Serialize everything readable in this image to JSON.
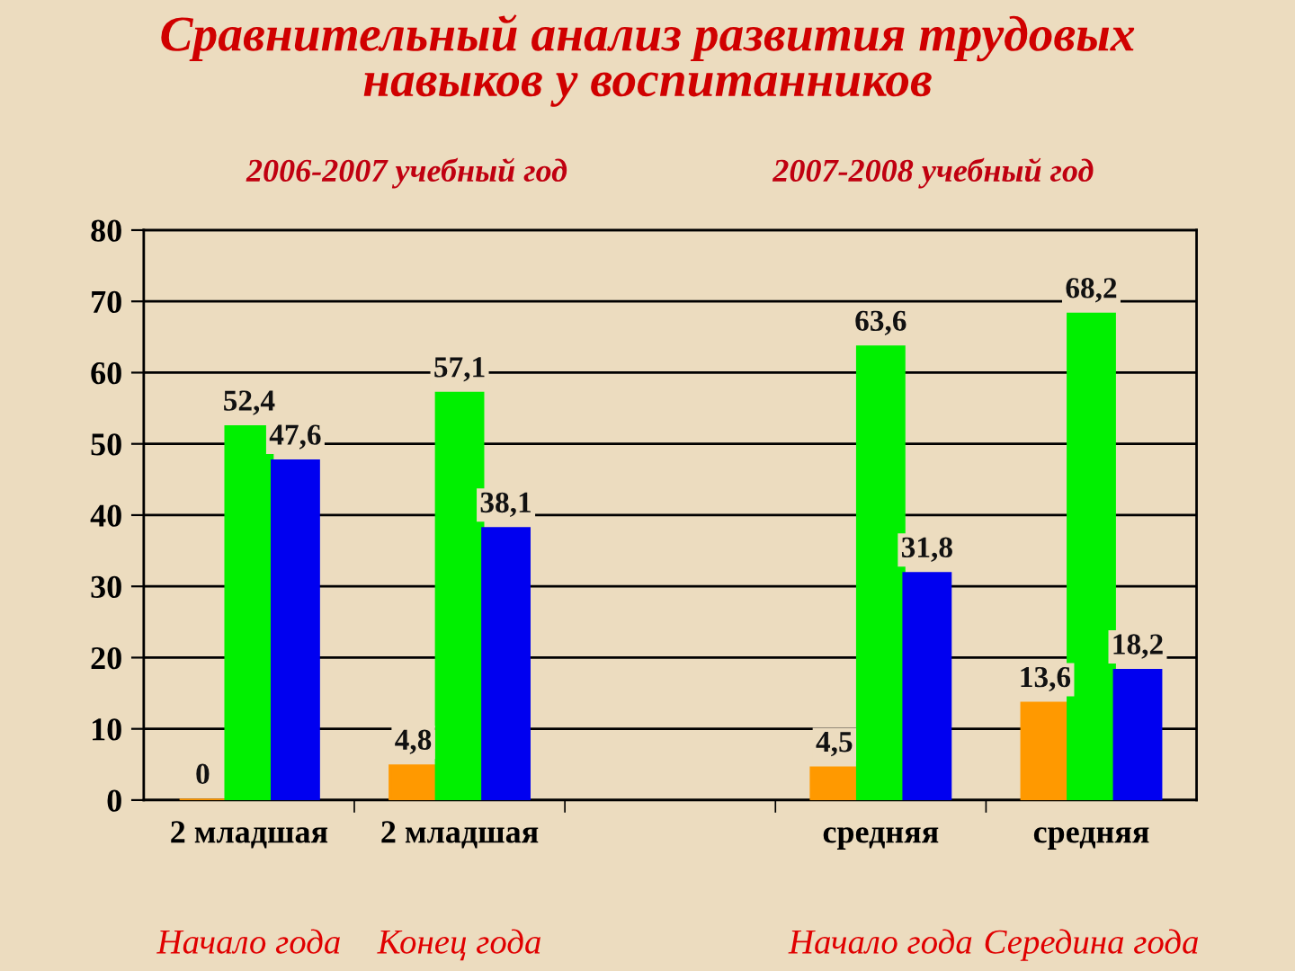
{
  "chart_data": {
    "type": "bar",
    "title": "Сравнительный анализ развития трудовых\nнавыков у воспитанников",
    "annotations": [
      "2006-2007 учебный год",
      "2007-2008 учебный год",
      "Начало года",
      "Конец года",
      "Начало года",
      "Середина года"
    ],
    "categories": [
      "2 младшая",
      "2 младшая",
      null,
      "средняя",
      "средняя"
    ],
    "series": [
      {
        "color": "#ff9900",
        "values": [
          0,
          4.8,
          null,
          4.5,
          13.6
        ],
        "value_labels": [
          "0",
          "4,8",
          null,
          "4,5",
          "13,6"
        ]
      },
      {
        "color": "#00f000",
        "values": [
          52.4,
          57.1,
          null,
          63.6,
          68.2
        ],
        "value_labels": [
          "52,4",
          "57,1",
          null,
          "63,6",
          "68,2"
        ]
      },
      {
        "color": "#0000f0",
        "values": [
          47.6,
          38.1,
          null,
          31.8,
          18.2
        ],
        "value_labels": [
          "47,6",
          "38,1",
          null,
          "31,8",
          "18,2"
        ]
      }
    ],
    "ylim": [
      0,
      80
    ],
    "yticks": [
      0,
      10,
      20,
      30,
      40,
      50,
      60,
      70,
      80
    ],
    "grid": "y",
    "legend": false
  }
}
